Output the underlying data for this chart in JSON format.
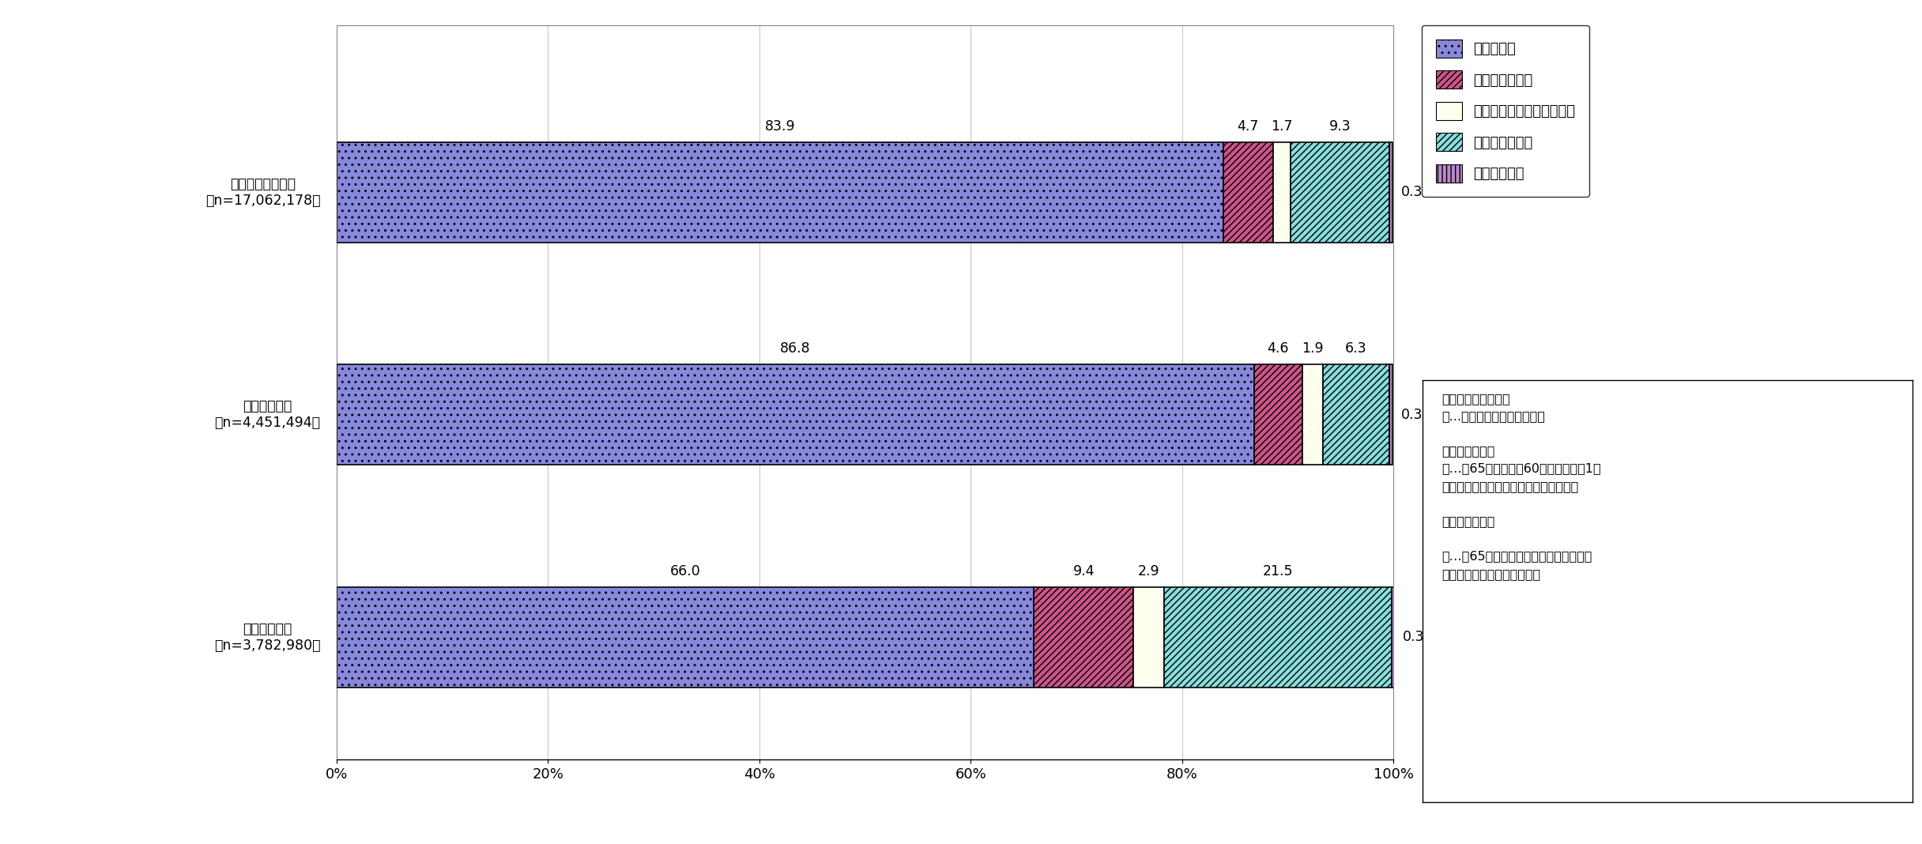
{
  "categories": [
    "高齢者のいる世帯\n（n=17,062,178）",
    "高齢夫婦世帯\n（n=4,451,494）",
    "高齢単身世帯\n（n=3,782,980）"
  ],
  "series_order": [
    "持ち家世帯",
    "公営の借家世帯",
    "都市機構・公社の借家世帯",
    "民営の借家世帯",
    "給与住宅世帯"
  ],
  "series": {
    "持ち家世帯": [
      83.9,
      86.8,
      66.0
    ],
    "公営の借家世帯": [
      4.7,
      4.6,
      9.4
    ],
    "都市機構・公社の借家世帯": [
      1.7,
      1.9,
      2.9
    ],
    "民営の借家世帯": [
      9.3,
      6.3,
      21.5
    ],
    "給与住宅世帯": [
      0.3,
      0.3,
      0.3
    ]
  },
  "colors": {
    "持ち家世帯": "#8888dd",
    "公営の借家世帯": "#cc5588",
    "都市機構・公社の借家世帯": "#fffff0",
    "民営の借家世帯": "#88dddd",
    "給与住宅世帯": "#bb88cc"
  },
  "hatches": {
    "持ち家世帯": "..",
    "公営の借家世帯": "////",
    "都市機構・公社の借家世帯": "",
    "民営の借家世帯": "////",
    "給与住宅世帯": "|||"
  },
  "legend_labels": [
    "持ち家世帯",
    "公営の借家世帯",
    "都市機構・公社の借家世帯",
    "民営の借家世帯",
    "給与住宅世帯"
  ],
  "note_box": "・高齢者のいる世帯\n　...来歳以上の者がいる世帯\n\n・高齢夫婦世帯\n　…夫65歳以上、妻60歳以上の夫婦1組\n　　の世帯（他の世帯員がいないもの）\n\n・高齢単身世帯\n\n　…　65歳以上の者一人のみの世帯（他\n　　の世帯員がいないもの）",
  "xtick_vals": [
    0,
    20,
    40,
    60,
    80,
    100
  ],
  "xtick_labels": [
    "0%",
    "20%",
    "40%",
    "60%",
    "80%",
    "100%"
  ],
  "bg_color": "#ffffff"
}
